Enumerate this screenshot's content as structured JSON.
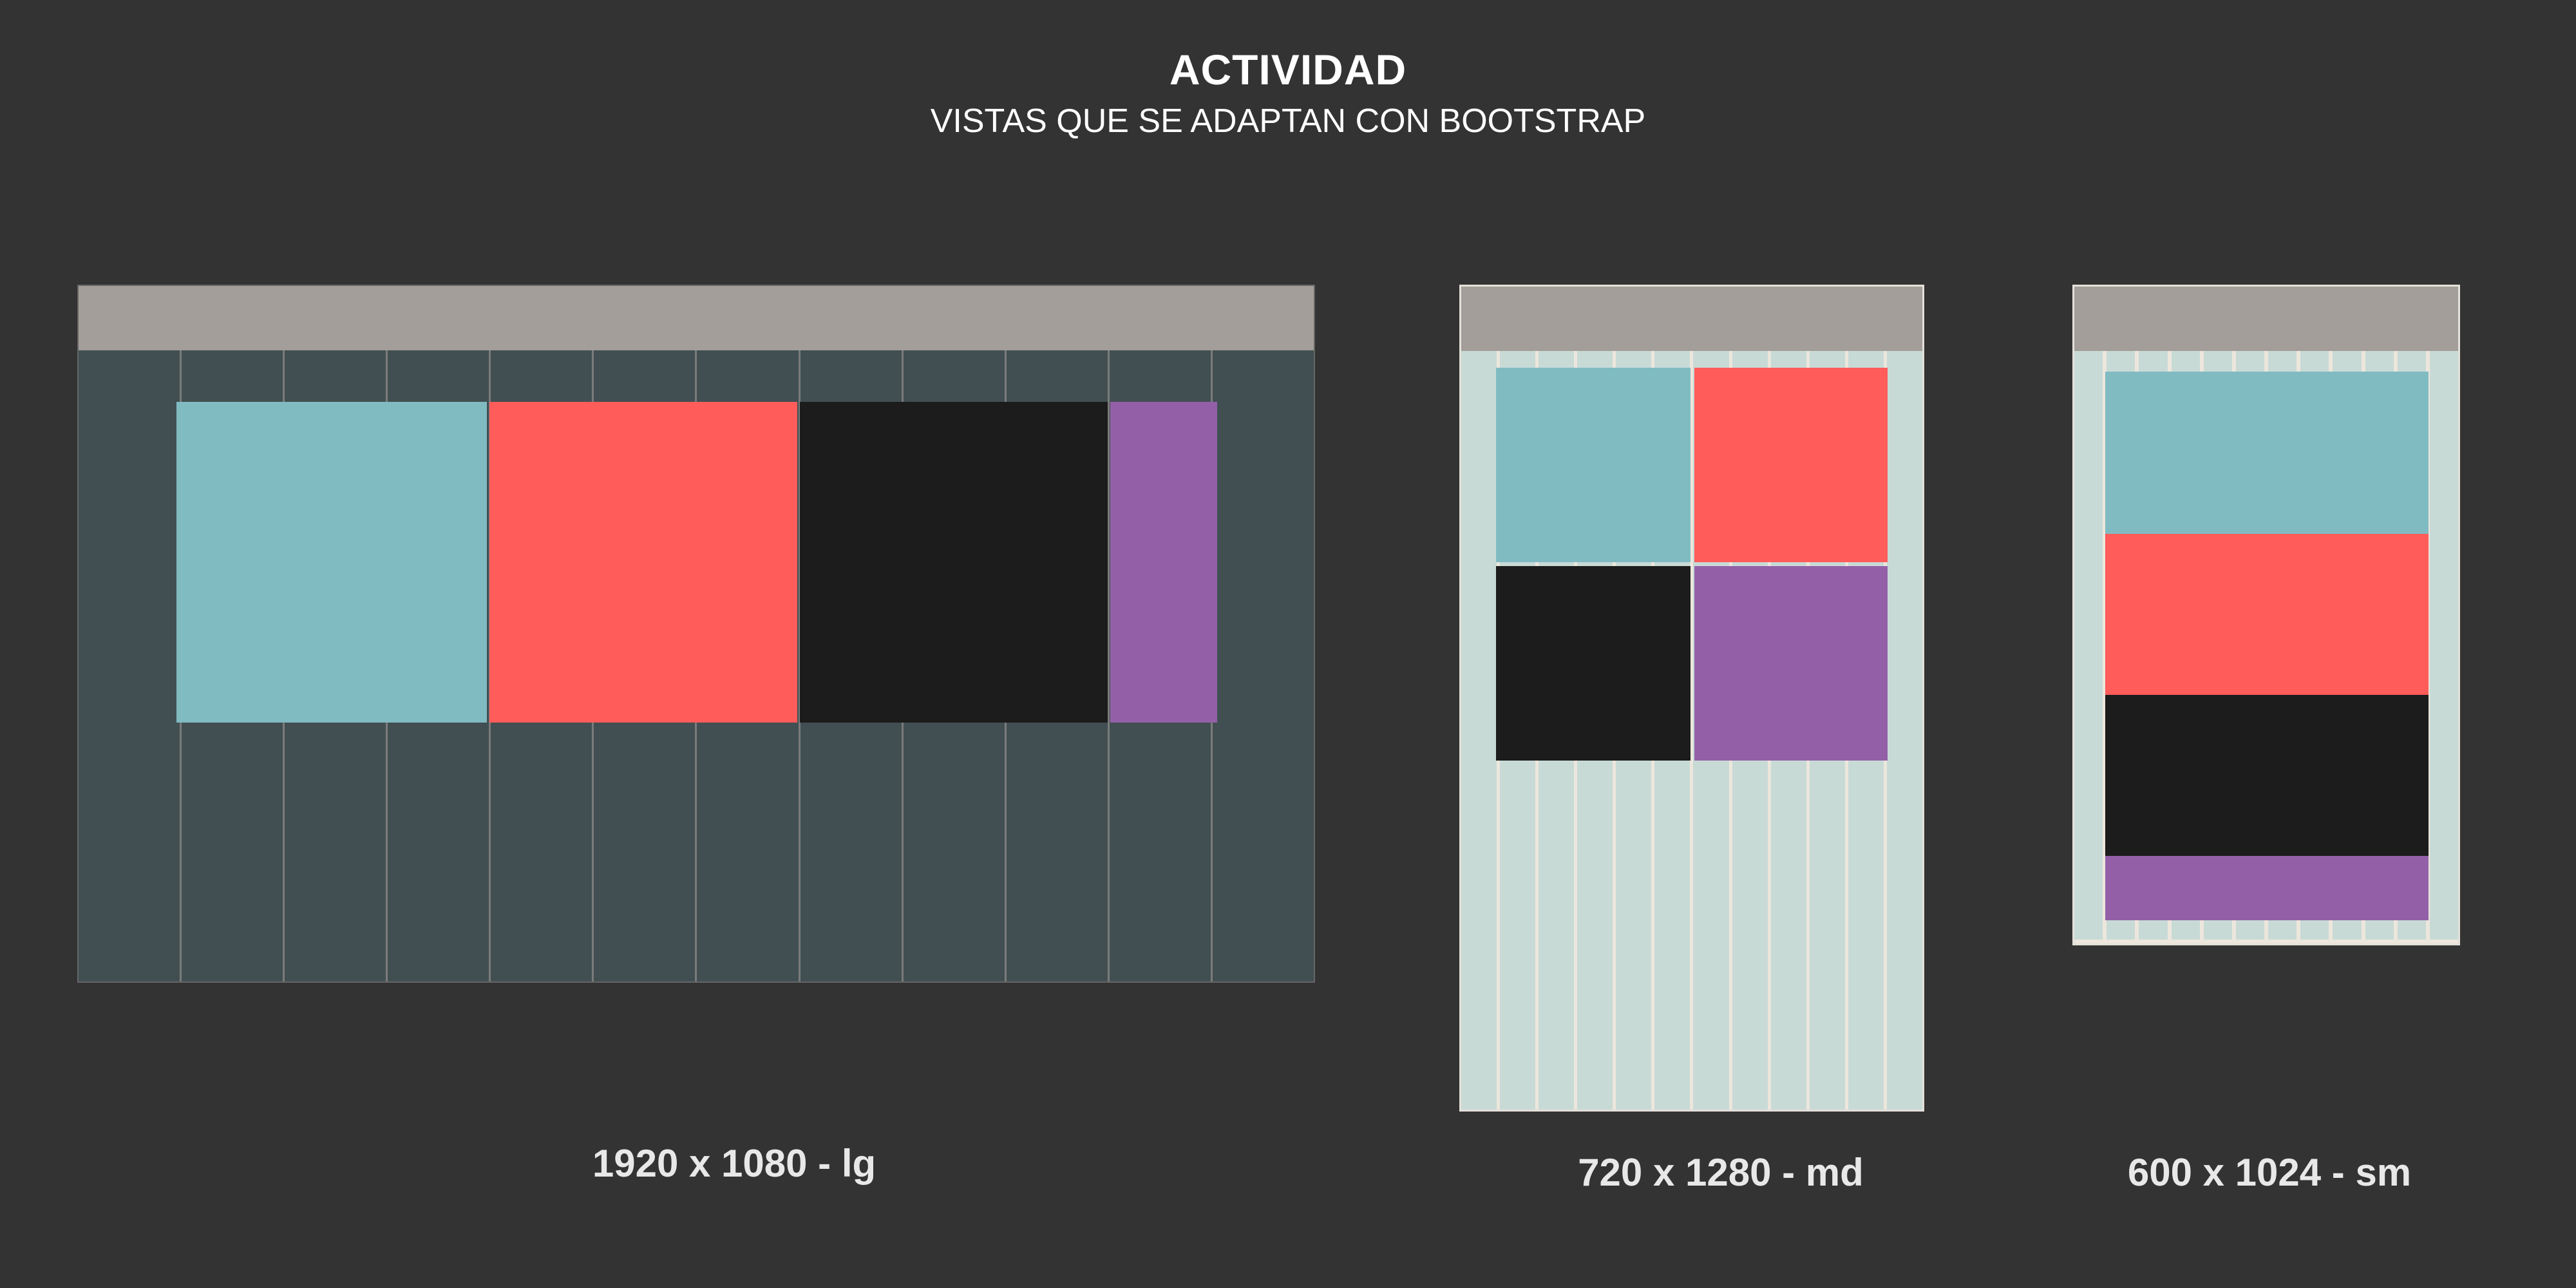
{
  "header": {
    "title": "ACTIVIDAD",
    "subtitle": "VISTAS QUE SE ADAPTAN CON BOOTSTRAP"
  },
  "colors": {
    "background": "#333333",
    "topbar": "#a39e99",
    "lg_canvas": "#414f52",
    "light_canvas": "#c8dad6",
    "teal": "#80bbc2",
    "red": "#ff5c5a",
    "black": "#1c1c1c",
    "purple": "#9360a8"
  },
  "views": [
    {
      "caption": "1920 x 1080 - lg",
      "columns": 12,
      "blocks": [
        "teal",
        "red",
        "black",
        "purple"
      ]
    },
    {
      "caption": "720 x 1280 - md",
      "columns": 12,
      "blocks": [
        "teal",
        "red",
        "black",
        "purple"
      ]
    },
    {
      "caption": "600 x 1024 - sm",
      "columns": 12,
      "blocks": [
        "teal",
        "red",
        "black",
        "purple"
      ]
    }
  ]
}
